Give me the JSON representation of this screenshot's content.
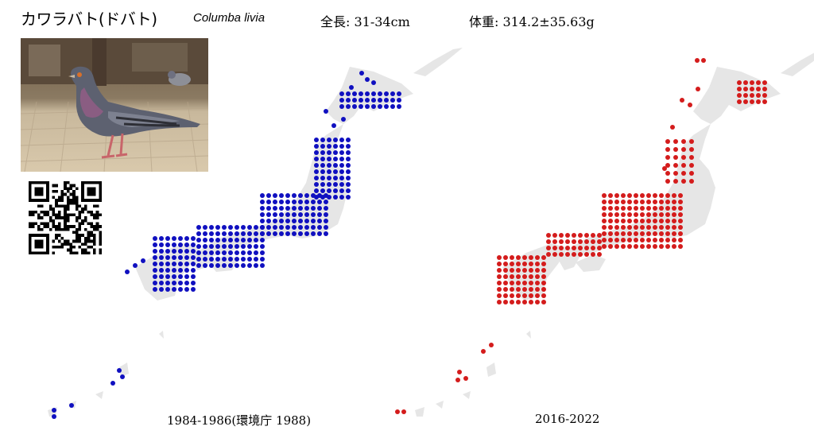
{
  "header": {
    "japanese_name": "カワラバト(ドバト)",
    "scientific_name": "Columba livia",
    "total_length": "全長: 31-34cm",
    "body_weight": "体重: 314.2±35.63g"
  },
  "photo": {
    "icon": "pigeon-photo"
  },
  "qr": {
    "icon": "qr-code"
  },
  "maps": {
    "left": {
      "caption": "1984-1986(環境庁 1988)",
      "dot_color": "#1010c0"
    },
    "right": {
      "caption": "2016-2022",
      "dot_color": "#d41c1c"
    },
    "land_color": "#e6e6e6"
  }
}
